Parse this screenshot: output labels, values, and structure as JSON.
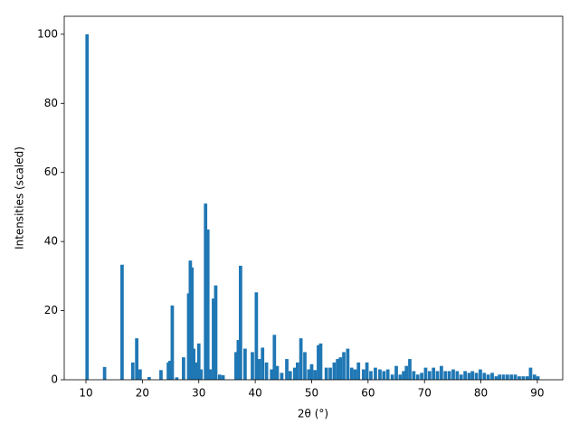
{
  "chart_data": {
    "type": "bar",
    "xlabel": "2θ (°)",
    "ylabel": "Intensities (scaled)",
    "color": "#1f77b4",
    "x": [
      10.2,
      13.3,
      16.4,
      18.3,
      19.0,
      19.6,
      21.2,
      23.3,
      24.6,
      24.9,
      25.3,
      26.1,
      27.3,
      28.2,
      28.5,
      28.8,
      29.1,
      29.5,
      30.0,
      30.4,
      31.2,
      31.6,
      32.0,
      32.6,
      33.0,
      33.7,
      34.3,
      36.6,
      37.0,
      37.4,
      38.2,
      39.5,
      40.2,
      40.7,
      41.3,
      42.0,
      42.9,
      43.4,
      43.9,
      44.7,
      45.6,
      46.2,
      47.0,
      47.5,
      48.1,
      48.8,
      49.5,
      50.0,
      50.6,
      51.2,
      51.6,
      52.6,
      53.3,
      54.0,
      54.6,
      55.1,
      55.7,
      56.4,
      57.1,
      57.7,
      58.3,
      59.2,
      59.8,
      60.5,
      61.3,
      62.1,
      62.8,
      63.5,
      64.3,
      65.0,
      65.7,
      66.3,
      66.8,
      67.4,
      68.1,
      68.8,
      69.5,
      70.2,
      70.9,
      71.6,
      72.3,
      73.0,
      73.7,
      74.4,
      75.1,
      75.8,
      76.5,
      77.2,
      77.9,
      78.5,
      79.2,
      79.9,
      80.6,
      81.3,
      82.0,
      82.7,
      83.3,
      84.0,
      84.7,
      85.4,
      86.1,
      86.8,
      87.5,
      88.2,
      88.8,
      89.5,
      90.1
    ],
    "values": [
      100,
      3.7,
      33.3,
      5,
      12,
      3,
      0.8,
      2.8,
      5,
      5.5,
      21.5,
      0.7,
      6.5,
      25,
      34.5,
      32.5,
      9,
      5,
      10.5,
      3,
      51,
      43.5,
      3,
      23.5,
      27.3,
      1.5,
      1.3,
      8,
      11.5,
      33,
      9,
      8,
      25.3,
      6,
      9.3,
      5,
      3,
      13,
      4,
      2,
      6,
      2.5,
      3.5,
      5,
      12,
      8,
      3,
      4.5,
      2.8,
      10,
      10.5,
      3.5,
      3.5,
      5,
      6,
      6.5,
      8,
      9,
      3.5,
      3,
      5,
      3,
      5,
      2.5,
      3.5,
      3,
      2.5,
      3,
      1.5,
      4,
      1.5,
      2.5,
      4,
      6,
      2.5,
      1.5,
      2,
      3.5,
      2.5,
      3.5,
      2.5,
      4,
      2.5,
      2.5,
      3,
      2.5,
      1.5,
      2.5,
      2,
      2.5,
      2,
      3,
      2,
      1.5,
      2,
      1,
      1.5,
      1.5,
      1.5,
      1.5,
      1.5,
      1,
      1,
      1,
      3.5,
      1.5,
      1
    ],
    "xlim": [
      6.15,
      94.5
    ],
    "ylim": [
      0,
      105.2
    ],
    "xticks": [
      10,
      20,
      30,
      40,
      50,
      60,
      70,
      80,
      90
    ],
    "yticks": [
      0,
      20,
      40,
      60,
      80,
      100
    ]
  }
}
